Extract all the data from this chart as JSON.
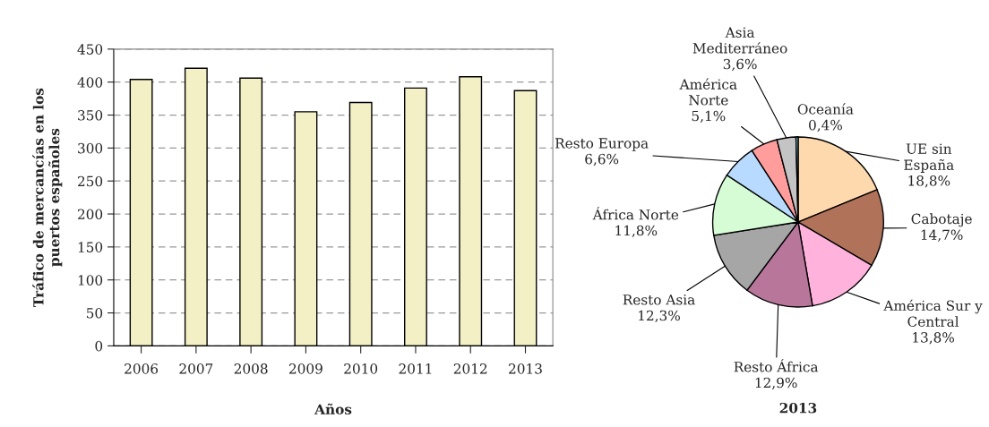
{
  "chart_data": [
    {
      "type": "bar",
      "xlabel": "Años",
      "ylabel": "Tráfico de mercancías en los\npuertos españoles",
      "categories": [
        "2006",
        "2007",
        "2008",
        "2009",
        "2010",
        "2011",
        "2012",
        "2013"
      ],
      "values": [
        404,
        421,
        406,
        355,
        369,
        391,
        408,
        387
      ],
      "color": "#f2f0c4",
      "ylim": [
        0,
        450
      ],
      "yticks": [
        0,
        50,
        100,
        150,
        200,
        250,
        300,
        350,
        400,
        450
      ],
      "grid": "y",
      "legend": false
    },
    {
      "type": "pie",
      "title": "2013",
      "categories": [
        "UE sin\nEspaña",
        "Cabotaje",
        "América Sur y\nCentral",
        "Resto África",
        "Resto Asia",
        "África Norte",
        "Resto Europa",
        "América\nNorte",
        "Asia\nMediterráneo",
        "Oceanía"
      ],
      "values": [
        18.8,
        14.7,
        13.8,
        12.9,
        12.3,
        11.8,
        6.6,
        5.1,
        3.6,
        0.4
      ],
      "value_labels": [
        "18,8%",
        "14,7%",
        "13,8%",
        "12,9%",
        "12,3%",
        "11,8%",
        "6,6%",
        "5,1%",
        "3,6%",
        "0,4%"
      ],
      "colors": [
        "#ffd9ae",
        "#b0735a",
        "#ffb3dc",
        "#b8779a",
        "#a6a6a6",
        "#d6fcd6",
        "#b8daff",
        "#ff9d9d",
        "#c4c4c4",
        "#7fd9f0"
      ],
      "legend": false
    }
  ]
}
